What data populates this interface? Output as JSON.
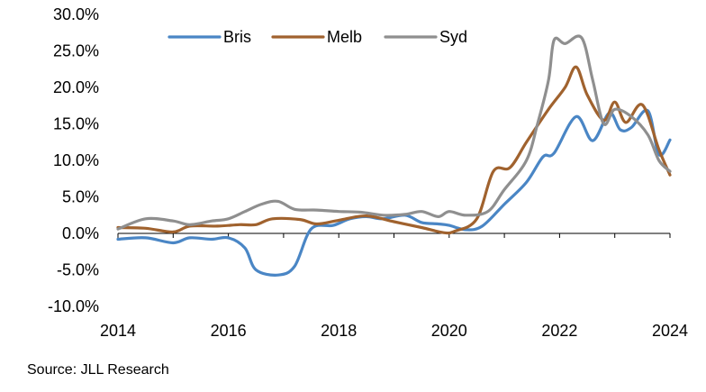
{
  "chart_data": {
    "type": "line",
    "title": "",
    "xlabel": "",
    "ylabel": "",
    "x_ticks": [
      "2014",
      "2016",
      "2018",
      "2020",
      "2022",
      "2024"
    ],
    "y_ticks": [
      "30.0%",
      "25.0%",
      "20.0%",
      "15.0%",
      "10.0%",
      "5.0%",
      "0.0%",
      "-5.0%",
      "-10.0%"
    ],
    "xlim": [
      2014,
      2024
    ],
    "ylim": [
      -10,
      30
    ],
    "grid": false,
    "legend_position": "top",
    "series": [
      {
        "name": "Bris",
        "color": "#4A86C5",
        "points": [
          [
            2014.0,
            -0.8
          ],
          [
            2014.5,
            -0.6
          ],
          [
            2015.0,
            -1.3
          ],
          [
            2015.3,
            -0.6
          ],
          [
            2015.7,
            -0.8
          ],
          [
            2016.0,
            -0.6
          ],
          [
            2016.3,
            -2.0
          ],
          [
            2016.5,
            -5.0
          ],
          [
            2016.9,
            -5.7
          ],
          [
            2017.2,
            -4.5
          ],
          [
            2017.5,
            0.6
          ],
          [
            2017.9,
            1.1
          ],
          [
            2018.2,
            2.0
          ],
          [
            2018.5,
            2.3
          ],
          [
            2018.8,
            2.0
          ],
          [
            2019.2,
            2.5
          ],
          [
            2019.5,
            1.5
          ],
          [
            2019.8,
            1.3
          ],
          [
            2020.0,
            1.1
          ],
          [
            2020.3,
            0.5
          ],
          [
            2020.6,
            1.0
          ],
          [
            2021.0,
            4.0
          ],
          [
            2021.4,
            7.0
          ],
          [
            2021.7,
            10.5
          ],
          [
            2021.9,
            11.0
          ],
          [
            2022.3,
            16.0
          ],
          [
            2022.6,
            12.7
          ],
          [
            2022.9,
            16.5
          ],
          [
            2023.1,
            14.2
          ],
          [
            2023.3,
            14.5
          ],
          [
            2023.6,
            16.8
          ],
          [
            2023.8,
            10.8
          ],
          [
            2024.0,
            12.8
          ]
        ]
      },
      {
        "name": "Melb",
        "color": "#A0622E",
        "points": [
          [
            2014.0,
            0.8
          ],
          [
            2014.5,
            0.7
          ],
          [
            2015.0,
            0.2
          ],
          [
            2015.3,
            1.0
          ],
          [
            2015.8,
            1.0
          ],
          [
            2016.2,
            1.2
          ],
          [
            2016.5,
            1.2
          ],
          [
            2016.8,
            2.0
          ],
          [
            2017.3,
            1.9
          ],
          [
            2017.6,
            1.3
          ],
          [
            2018.0,
            1.8
          ],
          [
            2018.5,
            2.4
          ],
          [
            2019.0,
            1.6
          ],
          [
            2019.5,
            0.8
          ],
          [
            2019.9,
            0.1
          ],
          [
            2020.1,
            0.3
          ],
          [
            2020.5,
            2.0
          ],
          [
            2020.8,
            8.5
          ],
          [
            2021.1,
            9.0
          ],
          [
            2021.4,
            12.5
          ],
          [
            2021.8,
            17.0
          ],
          [
            2022.1,
            20.0
          ],
          [
            2022.3,
            22.8
          ],
          [
            2022.5,
            19.0
          ],
          [
            2022.8,
            15.5
          ],
          [
            2023.0,
            18.0
          ],
          [
            2023.2,
            15.2
          ],
          [
            2023.5,
            17.6
          ],
          [
            2023.8,
            11.5
          ],
          [
            2024.0,
            8.0
          ]
        ]
      },
      {
        "name": "Syd",
        "color": "#8F8F8F",
        "points": [
          [
            2014.0,
            0.6
          ],
          [
            2014.5,
            2.0
          ],
          [
            2015.0,
            1.7
          ],
          [
            2015.3,
            1.2
          ],
          [
            2015.7,
            1.7
          ],
          [
            2016.0,
            2.0
          ],
          [
            2016.3,
            3.0
          ],
          [
            2016.6,
            4.0
          ],
          [
            2016.9,
            4.4
          ],
          [
            2017.2,
            3.3
          ],
          [
            2017.6,
            3.2
          ],
          [
            2018.0,
            3.0
          ],
          [
            2018.4,
            2.9
          ],
          [
            2018.8,
            2.5
          ],
          [
            2019.2,
            2.6
          ],
          [
            2019.5,
            3.0
          ],
          [
            2019.8,
            2.3
          ],
          [
            2020.0,
            3.0
          ],
          [
            2020.3,
            2.5
          ],
          [
            2020.7,
            3.0
          ],
          [
            2021.0,
            6.0
          ],
          [
            2021.4,
            10.0
          ],
          [
            2021.6,
            15.0
          ],
          [
            2021.8,
            21.0
          ],
          [
            2021.9,
            26.5
          ],
          [
            2022.1,
            26.0
          ],
          [
            2022.4,
            26.8
          ],
          [
            2022.6,
            21.0
          ],
          [
            2022.8,
            15.0
          ],
          [
            2023.0,
            17.0
          ],
          [
            2023.3,
            16.0
          ],
          [
            2023.6,
            13.5
          ],
          [
            2023.8,
            10.0
          ],
          [
            2024.0,
            8.5
          ]
        ]
      }
    ]
  },
  "source_text": "Source: JLL Research"
}
